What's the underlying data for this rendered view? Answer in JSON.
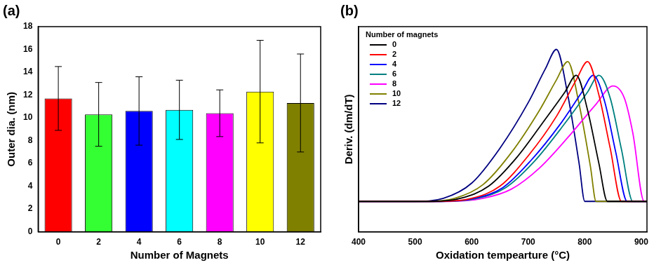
{
  "chart_data": [
    {
      "type": "bar",
      "title": "(a)",
      "x_label": "Number of Magnets",
      "y_label": "Outer dia. (nm)",
      "categories": [
        "0",
        "2",
        "4",
        "6",
        "8",
        "10",
        "12"
      ],
      "values": [
        11.7,
        10.3,
        10.6,
        10.7,
        10.4,
        12.3,
        11.3
      ],
      "errors": [
        2.8,
        2.8,
        3.0,
        2.6,
        2.05,
        4.5,
        4.3
      ],
      "colors": [
        "#ff0000",
        "#33ff33",
        "#0000ff",
        "#00ffff",
        "#ff00ff",
        "#ffff00",
        "#808000"
      ],
      "ylim": [
        0,
        18
      ],
      "yticks": [
        0,
        2,
        4,
        6,
        8,
        10,
        12,
        14,
        16,
        18
      ],
      "grid": false
    },
    {
      "type": "line",
      "title": "(b)",
      "x_label": "Oxidation tempearture (°C)",
      "y_label": "Deriv. (dm/dT)",
      "legend_title": "Number of magnets",
      "legend": "upper left",
      "xlim": [
        400,
        910
      ],
      "xticks": [
        400,
        500,
        600,
        700,
        800,
        900
      ],
      "ylim": [
        -0.2,
        1.15
      ],
      "tick_labels": "x",
      "grid": false,
      "series": [
        {
          "name": "0",
          "color": "#000000",
          "x": [
            400,
            530,
            580,
            630,
            680,
            730,
            765,
            785,
            805,
            825,
            840,
            910
          ],
          "values": [
            0,
            0,
            0.02,
            0.1,
            0.29,
            0.54,
            0.72,
            0.83,
            0.6,
            0.25,
            0,
            0
          ]
        },
        {
          "name": "2",
          "color": "#ff0000",
          "x": [
            400,
            540,
            600,
            650,
            700,
            750,
            785,
            805,
            825,
            845,
            865,
            910
          ],
          "values": [
            0,
            0,
            0.02,
            0.1,
            0.3,
            0.56,
            0.8,
            0.92,
            0.7,
            0.35,
            0,
            0
          ]
        },
        {
          "name": "4",
          "color": "#0000ff",
          "x": [
            400,
            545,
            605,
            655,
            705,
            755,
            795,
            815,
            835,
            855,
            875,
            910
          ],
          "values": [
            0,
            0,
            0.02,
            0.09,
            0.27,
            0.5,
            0.72,
            0.83,
            0.66,
            0.32,
            0,
            0
          ]
        },
        {
          "name": "6",
          "color": "#008080",
          "x": [
            400,
            550,
            610,
            660,
            710,
            760,
            805,
            825,
            845,
            865,
            885,
            910
          ],
          "values": [
            0,
            0,
            0.02,
            0.09,
            0.26,
            0.49,
            0.72,
            0.83,
            0.68,
            0.34,
            0,
            0
          ]
        },
        {
          "name": "8",
          "color": "#ff00ff",
          "x": [
            400,
            560,
            620,
            670,
            720,
            770,
            820,
            850,
            870,
            885,
            905,
            910
          ],
          "values": [
            0,
            0,
            0.02,
            0.08,
            0.22,
            0.42,
            0.64,
            0.76,
            0.68,
            0.45,
            0,
            0
          ]
        },
        {
          "name": "10",
          "color": "#808000",
          "x": [
            400,
            520,
            570,
            620,
            670,
            720,
            750,
            770,
            790,
            810,
            820,
            910
          ],
          "values": [
            0,
            0,
            0.02,
            0.11,
            0.32,
            0.6,
            0.8,
            0.92,
            0.64,
            0.23,
            0,
            0
          ]
        },
        {
          "name": "12",
          "color": "#000080",
          "x": [
            400,
            500,
            550,
            600,
            650,
            700,
            730,
            750,
            770,
            790,
            800,
            910
          ],
          "values": [
            0,
            0,
            0.02,
            0.12,
            0.35,
            0.65,
            0.87,
            1.0,
            0.7,
            0.25,
            0,
            0
          ]
        }
      ]
    }
  ]
}
